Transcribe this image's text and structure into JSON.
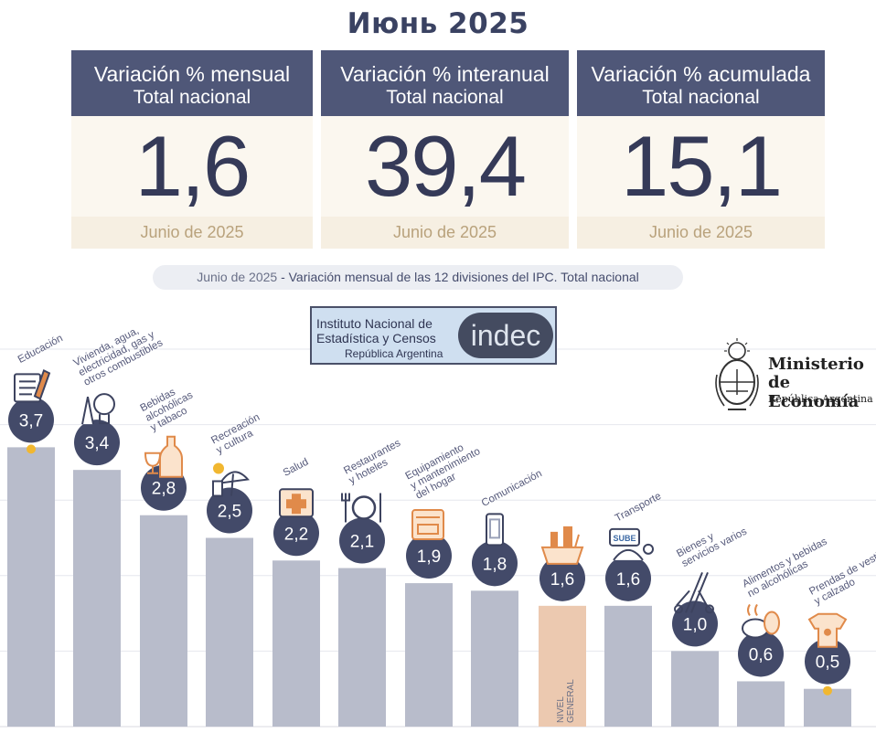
{
  "title": "Июнь 2025",
  "cards": [
    {
      "heading": "Variación % mensual",
      "sub": "Total nacional",
      "value": "1,6",
      "period": "Junio de 2025"
    },
    {
      "heading": "Variación % interanual",
      "sub": "Total nacional",
      "value": "39,4",
      "period": "Junio de 2025"
    },
    {
      "heading": "Variación % acumulada",
      "sub": "Total nacional",
      "value": "15,1",
      "period": "Junio de 2025"
    }
  ],
  "chart_subtitle_date": "Junio de 2025",
  "chart_subtitle_rest": " - Variación mensual de las 12 divisiones del IPC. Total nacional",
  "indec": {
    "line1": "Instituto Nacional de",
    "line2": "Estadística y Censos",
    "line3": "República Argentina",
    "logo": "indec"
  },
  "ministerio": {
    "line1": "Ministerio",
    "line2": "de Economía",
    "line3": "República Argentina"
  },
  "colors": {
    "header": "#4f5778",
    "bar": "#b8bccb",
    "bar_general": "#ecc9b0",
    "badge": "#434a69",
    "icon_accent": "#e08a4a",
    "highlight_dot": "#f1b730"
  },
  "chart_data": {
    "type": "bar",
    "title": "Variación mensual de las 12 divisiones del IPC. Total nacional",
    "ylim": [
      0,
      5
    ],
    "grid": true,
    "categories": [
      "Educación",
      "Vivienda, agua, electricidad, gas y otros combustibles",
      "Bebidas alcohólicas y tabaco",
      "Recreación y cultura",
      "Salud",
      "Restaurantes y hoteles",
      "Equipamiento y mantenimiento del hogar",
      "Comunicación",
      "NIVEL GENERAL",
      "Transporte",
      "Bienes y servicios varios",
      "Alimentos y bebidas no alcohólicas",
      "Prendas de vestir y calzado"
    ],
    "category_lines": [
      [
        "Educación"
      ],
      [
        "Vivienda, agua,",
        "electricidad, gas y",
        "otros combustibles"
      ],
      [
        "Bebidas",
        "alcohólicas",
        "y tabaco"
      ],
      [
        "Recreación",
        "y cultura"
      ],
      [
        "Salud"
      ],
      [
        "Restaurantes",
        "y hoteles"
      ],
      [
        "Equipamiento",
        "y mantenimiento",
        "del hogar"
      ],
      [
        "Comunicación"
      ],
      [],
      [
        "Transporte"
      ],
      [
        "Bienes y",
        "servicios varios"
      ],
      [
        "Alimentos y bebidas",
        "no alcohólicas"
      ],
      [
        "Prendas de vestir",
        "y calzado"
      ]
    ],
    "general_label": [
      "NIVEL",
      "GENERAL"
    ],
    "values": [
      3.7,
      3.4,
      2.8,
      2.5,
      2.2,
      2.1,
      1.9,
      1.8,
      1.6,
      1.6,
      1.0,
      0.6,
      0.5
    ],
    "value_labels": [
      "3,7",
      "3,4",
      "2,8",
      "2,5",
      "2,2",
      "2,1",
      "1,9",
      "1,8",
      "1,6",
      "1,6",
      "1,0",
      "0,6",
      "0,5"
    ],
    "icons": [
      "notebook-pencil-icon",
      "lightbulb-tools-icon",
      "bottle-glass-icon",
      "sun-umbrella-icon",
      "first-aid-kit-icon",
      "plate-cutlery-icon",
      "oven-icon",
      "smartphone-icon",
      "shopping-basket-icon",
      "sube-card-icon",
      "comb-scissors-icon",
      "food-icon",
      "clothing-icon"
    ],
    "highlight": [
      0,
      12
    ]
  }
}
